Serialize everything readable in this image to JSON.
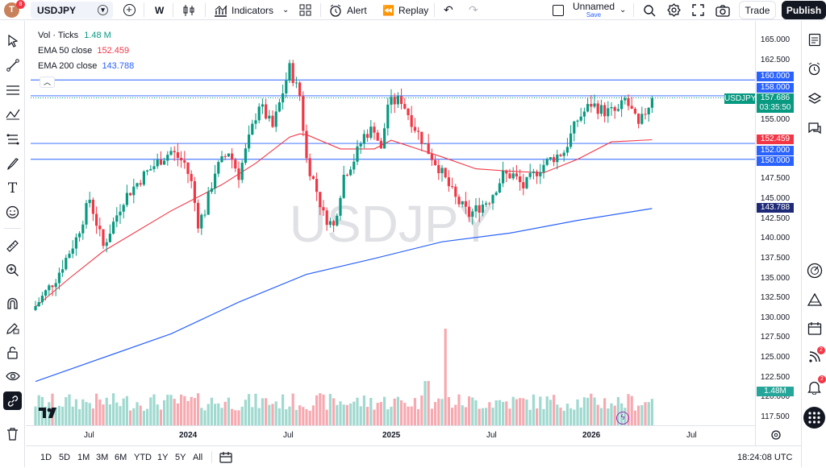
{
  "toolbar": {
    "avatar_letter": "T",
    "avatar_badge": "8",
    "symbol": "USDJPY",
    "interval": "W",
    "indicators_label": "Indicators",
    "alert_label": "Alert",
    "replay_label": "Replay",
    "layout_name": "Unnamed",
    "layout_status": "Save",
    "trade_label": "Trade",
    "publish_label": "Publish"
  },
  "legend": {
    "vol_label": "Vol · Ticks",
    "vol_value": "1.48 M",
    "ema50_label": "EMA 50 close",
    "ema50_value": "152.459",
    "ema200_label": "EMA 200 close",
    "ema200_value": "143.788"
  },
  "watermark": "USDJPY",
  "price_tags": {
    "symbol": "USDJPY",
    "last": "157.686",
    "countdown": "03:35:50",
    "h160": "160.000",
    "h158": "158.000",
    "ema50": "152.459",
    "h152": "152.000",
    "h150": "150.000",
    "ema200": "143.788",
    "volume": "1.48M"
  },
  "colors": {
    "up": "#089981",
    "down": "#f23645",
    "ema50": "#f23645",
    "ema200": "#2962ff",
    "hline": "#2962ff",
    "vol_up": "#9fd9cf",
    "vol_down": "#f7a9b0"
  },
  "bottom": {
    "ranges": [
      "1D",
      "5D",
      "1M",
      "3M",
      "6M",
      "YTD",
      "1Y",
      "5Y",
      "All"
    ],
    "time": "18:24:08 UTC"
  },
  "right_badges": {
    "ideas": "2",
    "alerts": "2"
  },
  "chart_data": {
    "type": "candlestick",
    "symbol": "USDJPY",
    "interval": "W",
    "ylim": [
      115.5,
      166.5
    ],
    "y_ticks": [
      "165.000",
      "162.500",
      "155.000",
      "152.500",
      "147.500",
      "145.000",
      "142.500",
      "140.000",
      "137.500",
      "135.000",
      "132.500",
      "130.000",
      "127.500",
      "125.000",
      "122.500",
      "120.000",
      "117.500"
    ],
    "x_ticks": [
      "Jul",
      "2024",
      "Jul",
      "2025",
      "Jul",
      "2026",
      "Jul"
    ],
    "horizontal_lines": [
      160.0,
      158.0,
      152.0,
      150.0
    ],
    "last_price": 157.686,
    "ema50_last": 152.459,
    "ema200_last": 143.788,
    "volume_last": "1.48M",
    "price_path": [
      [
        0,
        131.5
      ],
      [
        6,
        135
      ],
      [
        12,
        140
      ],
      [
        16,
        145
      ],
      [
        20,
        139
      ],
      [
        26,
        145
      ],
      [
        32,
        148
      ],
      [
        37,
        150
      ],
      [
        40,
        151
      ],
      [
        44,
        149.5
      ],
      [
        46,
        147
      ],
      [
        48,
        142
      ],
      [
        50,
        143.5
      ],
      [
        53,
        148.5
      ],
      [
        57,
        151
      ],
      [
        60,
        148
      ],
      [
        66,
        157
      ],
      [
        70,
        154
      ],
      [
        74,
        160
      ],
      [
        75,
        161.5
      ],
      [
        78,
        158
      ],
      [
        80,
        150
      ],
      [
        83,
        146
      ],
      [
        85,
        143
      ],
      [
        88,
        141.5
      ],
      [
        91,
        148
      ],
      [
        94,
        150
      ],
      [
        97,
        153
      ],
      [
        100,
        154
      ],
      [
        102,
        151
      ],
      [
        104,
        157
      ],
      [
        108,
        157.5
      ],
      [
        112,
        154
      ],
      [
        116,
        151
      ],
      [
        119,
        149
      ],
      [
        124,
        145
      ],
      [
        128,
        143
      ],
      [
        134,
        145
      ],
      [
        138,
        148
      ],
      [
        141,
        148
      ],
      [
        144,
        146.5
      ],
      [
        147,
        148
      ],
      [
        149,
        149
      ],
      [
        152,
        150
      ],
      [
        156,
        151
      ],
      [
        160,
        155
      ],
      [
        164,
        157
      ],
      [
        168,
        156
      ],
      [
        172,
        156
      ],
      [
        174,
        157.5
      ],
      [
        176,
        156
      ],
      [
        178,
        154
      ],
      [
        180,
        156
      ],
      [
        182,
        157.7
      ]
    ],
    "ema50_path": [
      [
        0,
        131.4
      ],
      [
        10,
        135
      ],
      [
        20,
        138.4
      ],
      [
        40,
        143.5
      ],
      [
        55,
        146.8
      ],
      [
        65,
        149.5
      ],
      [
        75,
        152.8
      ],
      [
        78,
        153.2
      ],
      [
        80,
        153.1
      ],
      [
        90,
        151.3
      ],
      [
        100,
        151.3
      ],
      [
        105,
        152.4
      ],
      [
        120,
        150.3
      ],
      [
        130,
        148.8
      ],
      [
        140,
        148.5
      ],
      [
        150,
        148.3
      ],
      [
        160,
        150
      ],
      [
        170,
        152.2
      ],
      [
        182,
        152.46
      ]
    ],
    "ema200_path": [
      [
        0,
        122
      ],
      [
        20,
        125
      ],
      [
        40,
        128
      ],
      [
        60,
        132
      ],
      [
        80,
        135.5
      ],
      [
        100,
        137.5
      ],
      [
        120,
        139.6
      ],
      [
        140,
        140.7
      ],
      [
        160,
        142.3
      ],
      [
        182,
        143.79
      ]
    ]
  }
}
